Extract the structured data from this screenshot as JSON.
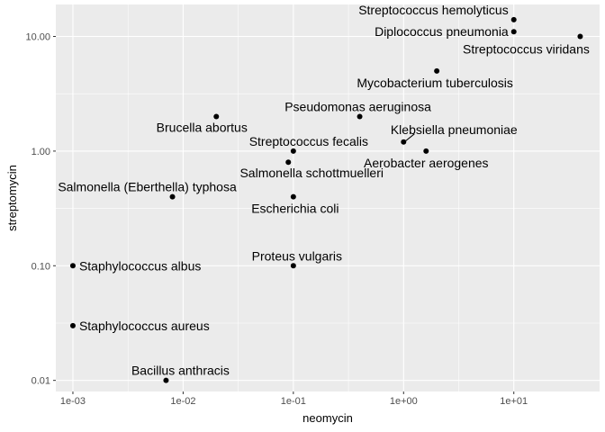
{
  "chart_data": {
    "type": "scatter",
    "xlabel": "neomycin",
    "ylabel": "streptomycin",
    "x_scale": "log10",
    "y_scale": "log10",
    "xlim": [
      0.0007,
      60
    ],
    "ylim": [
      0.008,
      19
    ],
    "x_ticks": [
      {
        "value": 0.001,
        "label": "1e-03"
      },
      {
        "value": 0.01,
        "label": "1e-02"
      },
      {
        "value": 0.1,
        "label": "1e-01"
      },
      {
        "value": 1,
        "label": "1e+00"
      },
      {
        "value": 10,
        "label": "1e+01"
      }
    ],
    "y_ticks": [
      {
        "value": 0.01,
        "label": "0.01"
      },
      {
        "value": 0.1,
        "label": "0.10"
      },
      {
        "value": 1,
        "label": "1.00"
      },
      {
        "value": 10,
        "label": "10.00"
      }
    ],
    "grid": true,
    "panel_background": "#ebebeb",
    "grid_major_color": "#ffffff",
    "point_color": "#000000",
    "points": [
      {
        "label": "Aerobacter aerogenes",
        "x": 1.6,
        "y": 1.0
      },
      {
        "label": "Brucella abortus",
        "x": 0.02,
        "y": 2.0
      },
      {
        "label": "Bacillus anthracis",
        "x": 0.007,
        "y": 0.01
      },
      {
        "label": "Diplococcus pneumonia",
        "x": 10,
        "y": 11
      },
      {
        "label": "Escherichia coli",
        "x": 0.1,
        "y": 0.4
      },
      {
        "label": "Klebsiella pneumoniae",
        "x": 1.0,
        "y": 1.2
      },
      {
        "label": "Mycobacterium tuberculosis",
        "x": 2.0,
        "y": 5.0
      },
      {
        "label": "Proteus vulgaris",
        "x": 0.1,
        "y": 0.1
      },
      {
        "label": "Pseudomonas aeruginosa",
        "x": 0.4,
        "y": 2.0
      },
      {
        "label": "Salmonella (Eberthella) typhosa",
        "x": 0.008,
        "y": 0.4
      },
      {
        "label": "Salmonella schottmuelleri",
        "x": 0.09,
        "y": 0.8
      },
      {
        "label": "Staphylococcus albus",
        "x": 0.001,
        "y": 0.1
      },
      {
        "label": "Staphylococcus aureus",
        "x": 0.001,
        "y": 0.03
      },
      {
        "label": "Streptococcus fecalis",
        "x": 0.1,
        "y": 1.0
      },
      {
        "label": "Streptococcus hemolyticus",
        "x": 10,
        "y": 14
      },
      {
        "label": "Streptococcus viridans",
        "x": 40,
        "y": 10
      }
    ]
  }
}
